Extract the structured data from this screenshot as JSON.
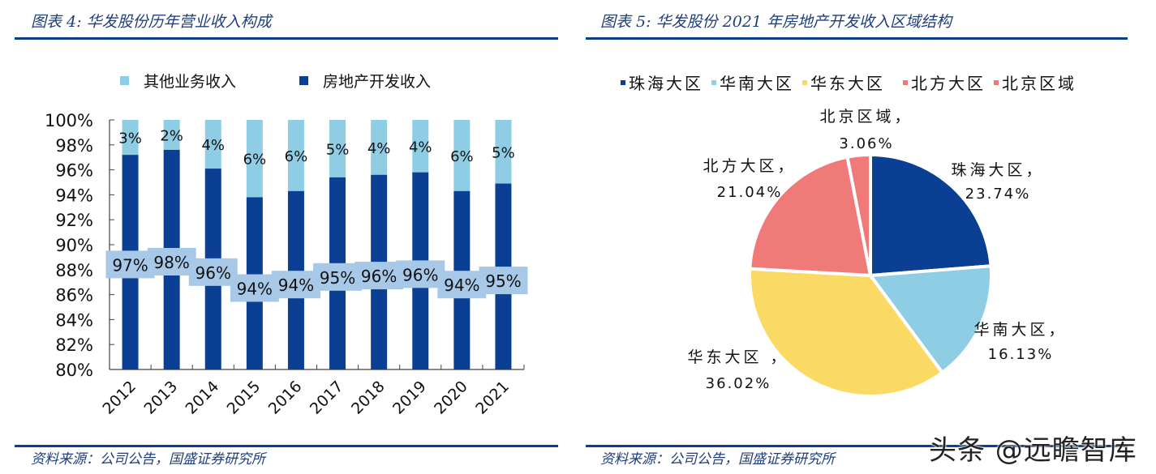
{
  "left_panel": {
    "title": "图表 4:  华发股份历年营业收入构成",
    "source": "资料来源：公司公告，国盛证券研究所",
    "legend": [
      {
        "label": "其他业务收入",
        "color": "#8fcde5"
      },
      {
        "label": "房地产开发收入",
        "color": "#0b3f93"
      }
    ],
    "y_ticks": [
      "100%",
      "98%",
      "96%",
      "94%",
      "92%",
      "90%",
      "88%",
      "86%",
      "84%",
      "82%",
      "80%"
    ]
  },
  "right_panel": {
    "title": "图表 5:  华发股份 2021 年房地产开发收入区域结构",
    "source": "资料来源：公司公告，国盛证券研究所",
    "legend": [
      {
        "label": "珠海大区",
        "color": "#0b3f93"
      },
      {
        "label": "华南大区",
        "color": "#8fcde5"
      },
      {
        "label": "华东大区",
        "color": "#fbd965"
      },
      {
        "label": "北方大区",
        "color": "#f07a78"
      },
      {
        "label": "北京区域",
        "color": "#f07a78"
      }
    ]
  },
  "watermark": "头条 @远瞻智库",
  "colors": {
    "accent_rule": "#0b3f8c",
    "title_text": "#1f3f7a",
    "dark_bar": "#0b3f93",
    "light_bar": "#8fcde5",
    "label_box": "#a8c8e8"
  },
  "chart_data": [
    {
      "type": "bar",
      "stacked": true,
      "title": "华发股份历年营业收入构成",
      "categories": [
        "2012",
        "2013",
        "2014",
        "2015",
        "2016",
        "2017",
        "2018",
        "2019",
        "2020",
        "2021"
      ],
      "series": [
        {
          "name": "房地产开发收入",
          "values": [
            97.2,
            97.6,
            96.1,
            93.8,
            94.3,
            95.4,
            95.6,
            95.8,
            94.3,
            94.9
          ],
          "labels": [
            "97%",
            "98%",
            "96%",
            "94%",
            "94%",
            "95%",
            "96%",
            "96%",
            "94%",
            "95%"
          ]
        },
        {
          "name": "其他业务收入",
          "values": [
            2.8,
            2.4,
            3.9,
            6.2,
            5.7,
            4.6,
            4.4,
            4.2,
            5.7,
            5.1
          ],
          "labels": [
            "3%",
            "2%",
            "4%",
            "6%",
            "6%",
            "5%",
            "4%",
            "4%",
            "6%",
            "5%"
          ]
        }
      ],
      "xlabel": "",
      "ylabel": "",
      "ylim": [
        80,
        100
      ],
      "y_tick_step": 2,
      "y_format": "percent",
      "legend_position": "top",
      "grid": false
    },
    {
      "type": "pie",
      "title": "华发股份2021年房地产开发收入区域结构",
      "categories": [
        "珠海大区",
        "华南大区",
        "华东大区",
        "北方大区",
        "北京区域"
      ],
      "values": [
        23.74,
        16.13,
        36.02,
        21.04,
        3.06
      ],
      "labels": [
        "23.74%",
        "16.13%",
        "36.02%",
        "21.04%",
        "3.06%"
      ],
      "colors": [
        "#0b3f93",
        "#8fcde5",
        "#fbd965",
        "#f07a78",
        "#f07a78"
      ],
      "start_angle_deg": 90,
      "direction": "clockwise",
      "legend_position": "top"
    }
  ]
}
